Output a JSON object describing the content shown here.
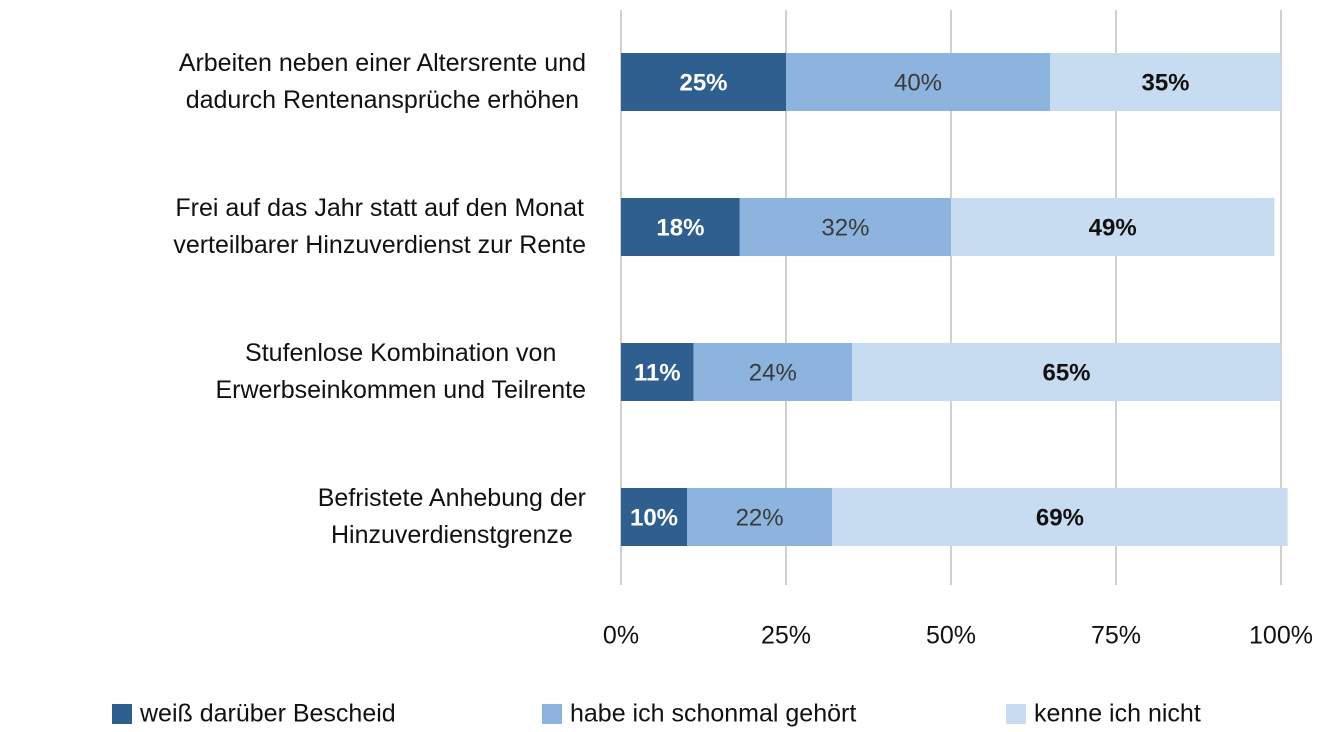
{
  "chart_data": {
    "type": "stacked-bar",
    "orientation": "horizontal",
    "categories": [
      "Arbeiten neben einer Altersrente und\ndadurch Rentenansprüche erhöhen",
      "Frei auf das Jahr statt auf den Monat\nverteilbarer Hinzuverdienst zur Rente",
      "Stufenlose Kombination von\nErwerbseinkommen und Teilrente",
      "Befristete Anhebung der\nHinzuverdienstgrenze"
    ],
    "series": [
      {
        "name": "weiß darüber Bescheid",
        "color": "#2f5f8f",
        "values": [
          25,
          18,
          11,
          10
        ],
        "value_labels": [
          "25%",
          "18%",
          "11%",
          "10%"
        ]
      },
      {
        "name": "habe ich schonmal gehört",
        "color": "#8db4de",
        "values": [
          40,
          32,
          24,
          22
        ],
        "value_labels": [
          "40%",
          "32%",
          "24%",
          "22%"
        ]
      },
      {
        "name": "kenne ich nicht",
        "color": "#c7dcf1",
        "values": [
          35,
          49,
          65,
          69
        ],
        "value_labels": [
          "35%",
          "49%",
          "65%",
          "69%"
        ]
      }
    ],
    "xlim": [
      0,
      100
    ],
    "xticks": [
      {
        "value": 0,
        "label": "0%"
      },
      {
        "value": 25,
        "label": "25%"
      },
      {
        "value": 50,
        "label": "50%"
      },
      {
        "value": 75,
        "label": "75%"
      },
      {
        "value": 100,
        "label": "100%"
      }
    ],
    "grid": true,
    "legend": "bottom"
  }
}
